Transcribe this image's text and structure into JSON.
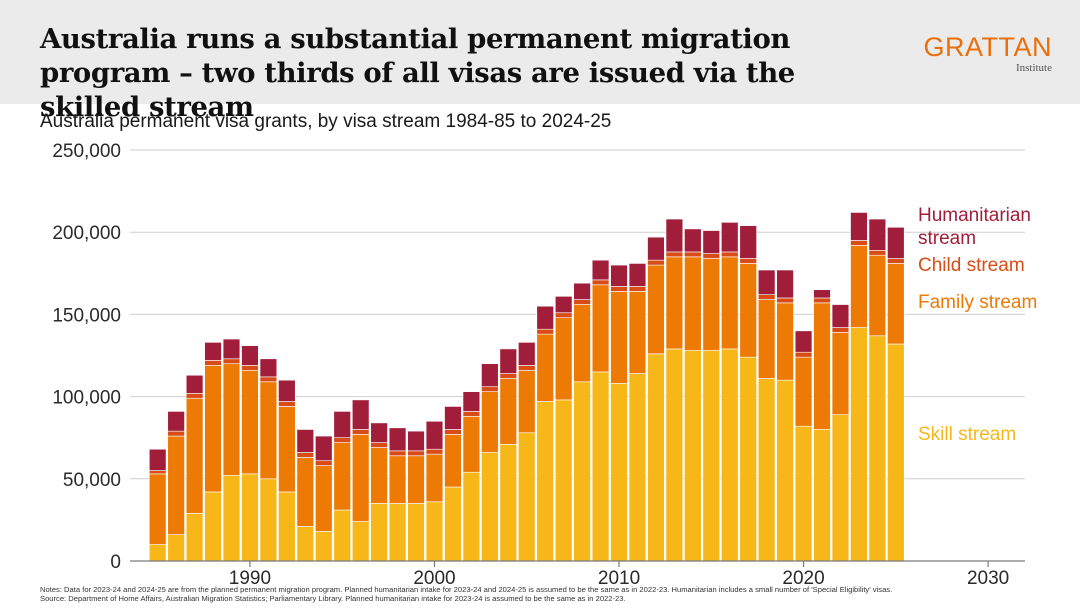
{
  "header": {
    "title": "Australia runs a substantial permanent migration program – two thirds of all visas are issued via the skilled stream",
    "logo_main": "GRATTAN",
    "logo_sub": "Institute"
  },
  "notes": {
    "line1": "Notes: Data for 2023-24 and 2024-25 are from the planned permanent migration program. Planned humanitarian intake for 2023-24 and 2024-25 is assumed to be the same as in 2022-23. Humanitarian includes a small number of 'Special Eligibility' visas.",
    "line2": "Source: Department of Home Affairs, Australian Migration Statistics; Parliamentary Library. Planned humanitarian intake for 2023-24 is assumed to be the same as in 2022-23."
  },
  "colors": {
    "skill": "#f7b718",
    "family": "#ec7a05",
    "child": "#d84c17",
    "humanitarian": "#a11e3a"
  },
  "chart_data": {
    "type": "bar",
    "stacked": true,
    "title": "Australia permanent visa grants, by visa stream 1984-85 to 2024-25",
    "xlabel": "",
    "ylabel": "",
    "xlim": [
      1983.5,
      2032
    ],
    "ylim": [
      0,
      250000
    ],
    "yticks": [
      0,
      50000,
      100000,
      150000,
      200000,
      250000
    ],
    "ytick_labels": [
      "0",
      "50,000",
      "100,000",
      "150,000",
      "200,000",
      "250,000"
    ],
    "xticks": [
      1990,
      2000,
      2010,
      2020,
      2030
    ],
    "grid": true,
    "x": [
      1985,
      1986,
      1987,
      1988,
      1989,
      1990,
      1991,
      1992,
      1993,
      1994,
      1995,
      1996,
      1997,
      1998,
      1999,
      2000,
      2001,
      2002,
      2003,
      2004,
      2005,
      2006,
      2007,
      2008,
      2009,
      2010,
      2011,
      2012,
      2013,
      2014,
      2015,
      2016,
      2017,
      2018,
      2019,
      2020,
      2021,
      2022,
      2023,
      2024,
      2025
    ],
    "series": [
      {
        "name": "Skill stream",
        "key": "skill",
        "values": [
          10000,
          16000,
          29000,
          42000,
          52000,
          53000,
          50000,
          42000,
          21000,
          18000,
          31000,
          24000,
          35000,
          35000,
          35000,
          36000,
          45000,
          54000,
          66000,
          71000,
          78000,
          97000,
          98000,
          109000,
          115000,
          108000,
          114000,
          126000,
          129000,
          128000,
          128000,
          129000,
          124000,
          111000,
          110000,
          82000,
          80000,
          89000,
          142000,
          137000,
          132000
        ]
      },
      {
        "name": "Family stream",
        "key": "family",
        "values": [
          43000,
          60000,
          70000,
          77000,
          68000,
          63000,
          59000,
          52000,
          42000,
          40000,
          41000,
          53000,
          34000,
          29000,
          29000,
          29000,
          32000,
          34000,
          37000,
          40000,
          38000,
          41000,
          50000,
          47000,
          53000,
          56000,
          50000,
          54000,
          56000,
          57000,
          56000,
          56000,
          57000,
          48000,
          47000,
          42000,
          77000,
          50000,
          50000,
          49000,
          49000
        ]
      },
      {
        "name": "Child stream",
        "key": "child",
        "values": [
          2000,
          3000,
          3000,
          3000,
          3000,
          3000,
          3000,
          3000,
          3000,
          3000,
          3000,
          3000,
          3000,
          3000,
          3000,
          3000,
          3000,
          3000,
          3000,
          3000,
          3000,
          3000,
          3000,
          3000,
          3000,
          3000,
          3000,
          3000,
          3000,
          3000,
          3000,
          3000,
          3000,
          3000,
          3000,
          3000,
          3000,
          3000,
          3000,
          3000,
          3000
        ]
      },
      {
        "name": "Humanitarian stream",
        "key": "humanitarian",
        "values": [
          13000,
          12000,
          11000,
          11000,
          12000,
          12000,
          11000,
          13000,
          14000,
          15000,
          16000,
          18000,
          12000,
          14000,
          12000,
          17000,
          14000,
          12000,
          14000,
          15000,
          14000,
          14000,
          10000,
          10000,
          12000,
          13000,
          14000,
          14000,
          20000,
          14000,
          14000,
          18000,
          20000,
          15000,
          17000,
          13000,
          5000,
          14000,
          17000,
          19000,
          19000
        ]
      }
    ],
    "legend": [
      {
        "key": "humanitarian",
        "label": "Humanitarian stream",
        "lines": [
          "Humanitarian",
          "stream"
        ]
      },
      {
        "key": "child",
        "label": "Child stream",
        "lines": [
          "Child stream"
        ]
      },
      {
        "key": "family",
        "label": "Family stream",
        "lines": [
          "Family stream"
        ]
      },
      {
        "key": "skill",
        "label": "Skill stream",
        "lines": [
          "Skill stream"
        ]
      }
    ],
    "legend_position": "right"
  }
}
